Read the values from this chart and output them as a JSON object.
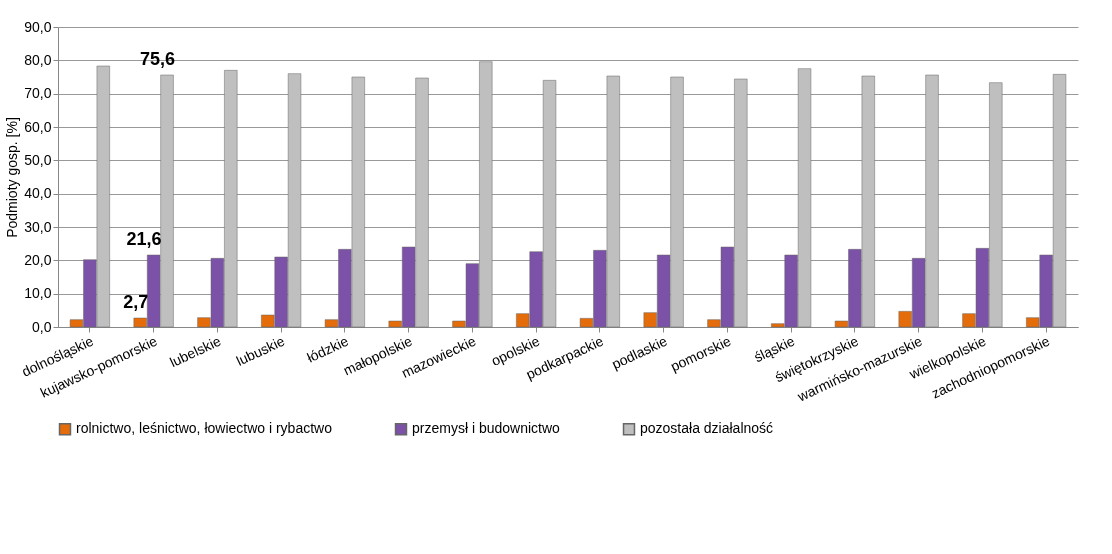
{
  "chart_data": {
    "type": "bar",
    "ylabel": "Podmioty gosp. [%]",
    "categories": [
      "dolnośląskie",
      "kujawsko-pomorskie",
      "lubelskie",
      "lubuskie",
      "łódzkie",
      "małopolskie",
      "mazowieckie",
      "opolskie",
      "podkarpackie",
      "podlaskie",
      "pomorskie",
      "śląskie",
      "świętokrzyskie",
      "warmińsko-mazurskie",
      "wielkopolskie",
      "zachodniopomorskie"
    ],
    "series": [
      {
        "name": "rolnictwo, leśnictwo, łowiectwo i rybactwo",
        "color": "#e46c0a",
        "values": [
          2.2,
          2.7,
          2.8,
          3.6,
          2.2,
          1.8,
          1.8,
          4.0,
          2.6,
          4.3,
          2.2,
          1.0,
          1.8,
          4.7,
          4.0,
          2.8
        ],
        "value_labels": [
          null,
          "2,7",
          null,
          null,
          null,
          null,
          null,
          null,
          null,
          null,
          null,
          null,
          null,
          null,
          null,
          null
        ]
      },
      {
        "name": "przemysł i budownictwo",
        "color": "#7b52a8",
        "values": [
          20.2,
          21.6,
          20.6,
          21.0,
          23.3,
          24.0,
          19.0,
          22.6,
          23.0,
          21.6,
          24.0,
          21.6,
          23.3,
          20.6,
          23.6,
          21.6
        ],
        "value_labels": [
          null,
          "21,6",
          null,
          null,
          null,
          null,
          null,
          null,
          null,
          null,
          null,
          null,
          null,
          null,
          null,
          null
        ]
      },
      {
        "name": "pozostała działalność",
        "color": "#bfbfbf",
        "values": [
          78.3,
          75.6,
          77.0,
          76.0,
          75.0,
          74.7,
          79.6,
          74.0,
          75.3,
          75.0,
          74.4,
          77.5,
          75.3,
          75.6,
          73.3,
          75.8
        ],
        "value_labels": [
          null,
          "75,6",
          null,
          null,
          null,
          null,
          null,
          null,
          null,
          null,
          null,
          null,
          null,
          null,
          null,
          null
        ]
      }
    ],
    "ylim": [
      0,
      90
    ],
    "yticks": [
      {
        "value": 0,
        "label": "0,0"
      },
      {
        "value": 10,
        "label": "10,0"
      },
      {
        "value": 20,
        "label": "20,0"
      },
      {
        "value": 30,
        "label": "30,0"
      },
      {
        "value": 40,
        "label": "40,0"
      },
      {
        "value": 50,
        "label": "50,0"
      },
      {
        "value": 60,
        "label": "60,0"
      },
      {
        "value": 70,
        "label": "70,0"
      },
      {
        "value": 80,
        "label": "80,0"
      },
      {
        "value": 90,
        "label": "90,0"
      }
    ],
    "grid": "y",
    "legend": "bottom"
  }
}
